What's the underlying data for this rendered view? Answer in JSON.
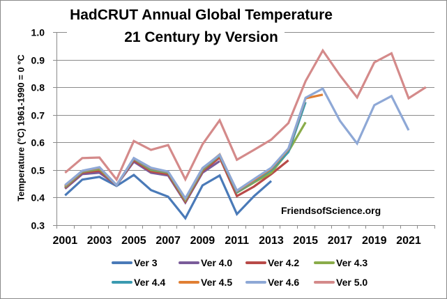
{
  "chart_data": {
    "type": "line",
    "title": "HadCRUT Annual Global Temperature",
    "subtitle": "21 Century by Version",
    "xlabel": "",
    "ylabel": "Temperature (°C)  1961-1990 = 0 °C",
    "ylim": [
      0.3,
      1.0
    ],
    "yticks": [
      "0.3",
      "0.4",
      "0.5",
      "0.6",
      "0.7",
      "0.8",
      "0.9",
      "1.0"
    ],
    "xtick_labels": [
      "2001",
      "2003",
      "2005",
      "2007",
      "2009",
      "2011",
      "2013",
      "2015",
      "2017",
      "2019",
      "2021"
    ],
    "grid": true,
    "legend_position": "bottom",
    "annotation": "FriendsofScience.org",
    "x": [
      2001,
      2002,
      2003,
      2004,
      2005,
      2006,
      2007,
      2008,
      2009,
      2010,
      2011,
      2012,
      2013,
      2014,
      2015,
      2016,
      2017,
      2018,
      2019,
      2020,
      2021,
      2022
    ],
    "series": [
      {
        "name": "Ver 3",
        "color": "#4a7ab8",
        "values": [
          0.408,
          0.465,
          0.475,
          0.442,
          0.482,
          0.427,
          0.403,
          0.325,
          0.444,
          0.48,
          0.34,
          0.405,
          0.46,
          null,
          null,
          null,
          null,
          null,
          null,
          null,
          null,
          null
        ]
      },
      {
        "name": "Ver 4.0",
        "color": "#7a5c9a",
        "values": [
          0.432,
          0.485,
          0.49,
          0.445,
          0.53,
          0.49,
          0.48,
          0.382,
          0.49,
          0.532,
          null,
          null,
          null,
          null,
          null,
          null,
          null,
          null,
          null,
          null,
          null,
          null
        ]
      },
      {
        "name": "Ver 4.2",
        "color": "#b84a48",
        "values": [
          0.435,
          0.49,
          0.497,
          0.445,
          0.535,
          0.495,
          0.485,
          0.385,
          0.495,
          0.545,
          0.405,
          0.44,
          0.485,
          0.535,
          null,
          null,
          null,
          null,
          null,
          null,
          null,
          null
        ]
      },
      {
        "name": "Ver 4.3",
        "color": "#8aac4a",
        "values": [
          0.438,
          0.493,
          0.503,
          0.445,
          0.54,
          0.5,
          0.49,
          0.39,
          0.5,
          0.553,
          0.418,
          0.455,
          0.49,
          0.567,
          0.673,
          null,
          null,
          null,
          null,
          null,
          null,
          null
        ]
      },
      {
        "name": "Ver 4.4",
        "color": "#3a9ab0",
        "values": [
          0.44,
          0.495,
          0.507,
          0.445,
          0.541,
          0.504,
          0.492,
          0.394,
          0.503,
          0.555,
          0.42,
          0.46,
          0.5,
          0.565,
          0.746,
          null,
          null,
          null,
          null,
          null,
          null,
          null
        ]
      },
      {
        "name": "Ver 4.5",
        "color": "#e07f34",
        "values": [
          0.442,
          0.496,
          0.508,
          0.445,
          0.542,
          0.506,
          0.493,
          0.395,
          0.505,
          0.556,
          0.423,
          0.463,
          0.505,
          0.575,
          0.76,
          0.773,
          null,
          null,
          null,
          null,
          null,
          null
        ]
      },
      {
        "name": "Ver 4.6",
        "color": "#8ea8d6",
        "values": [
          0.445,
          0.497,
          0.51,
          0.445,
          0.543,
          0.508,
          0.494,
          0.397,
          0.507,
          0.555,
          0.425,
          0.467,
          0.508,
          0.578,
          0.762,
          0.795,
          0.678,
          0.596,
          0.735,
          0.768,
          0.644,
          null
        ]
      },
      {
        "name": "Ver 5.0",
        "color": "#d48a8a",
        "values": [
          0.49,
          0.543,
          0.545,
          0.465,
          0.605,
          0.573,
          0.59,
          0.466,
          0.593,
          0.68,
          0.537,
          0.573,
          0.61,
          0.67,
          0.822,
          0.933,
          0.843,
          0.763,
          0.89,
          0.923,
          0.76,
          0.8
        ]
      }
    ]
  },
  "legend": {
    "items": [
      {
        "label": "Ver 3",
        "color": "#4a7ab8"
      },
      {
        "label": "Ver 4.0",
        "color": "#7a5c9a"
      },
      {
        "label": "Ver 4.2",
        "color": "#b84a48"
      },
      {
        "label": "Ver 4.3",
        "color": "#8aac4a"
      },
      {
        "label": "Ver 4.4",
        "color": "#3a9ab0"
      },
      {
        "label": "Ver 4.5",
        "color": "#e07f34"
      },
      {
        "label": "Ver 4.6",
        "color": "#8ea8d6"
      },
      {
        "label": "Ver 5.0",
        "color": "#d48a8a"
      }
    ]
  },
  "colors": {
    "gridline": "#8a8a8a",
    "axis": "#8a8a8a",
    "border": "#8a8a8a"
  }
}
